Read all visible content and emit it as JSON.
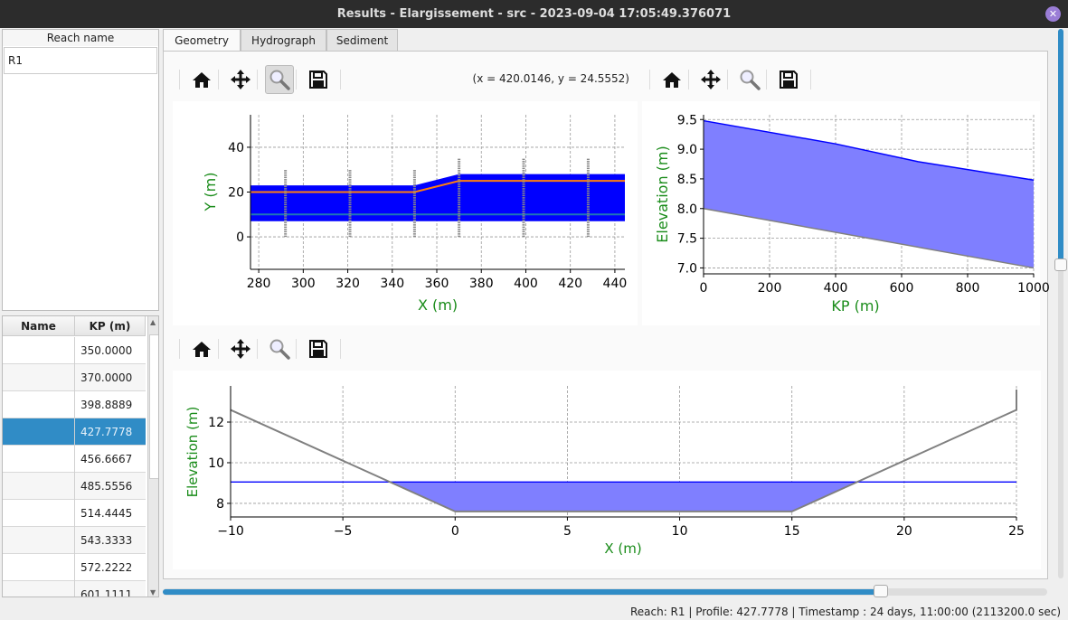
{
  "window": {
    "title": "Results - Elargissement - src - 2023-09-04 17:05:49.376071",
    "close_icon": "close-icon"
  },
  "reach_list": {
    "header": "Reach name",
    "items": [
      "R1"
    ]
  },
  "profile_table": {
    "headers": [
      "Name",
      "KP (m)"
    ],
    "rows": [
      {
        "name": "",
        "kp": "350.0000"
      },
      {
        "name": "",
        "kp": "370.0000"
      },
      {
        "name": "",
        "kp": "398.8889"
      },
      {
        "name": "",
        "kp": "427.7778",
        "selected": true
      },
      {
        "name": "",
        "kp": "456.6667"
      },
      {
        "name": "",
        "kp": "485.5556"
      },
      {
        "name": "",
        "kp": "514.4445"
      },
      {
        "name": "",
        "kp": "543.3333"
      },
      {
        "name": "",
        "kp": "572.2222"
      },
      {
        "name": "",
        "kp": "601.1111"
      }
    ]
  },
  "tabs": [
    {
      "label": "Geometry",
      "active": true
    },
    {
      "label": "Hydrograph"
    },
    {
      "label": "Sediment"
    }
  ],
  "toolbar": {
    "icons": [
      "home-icon",
      "pan-icon",
      "zoom-icon",
      "save-icon"
    ],
    "coords": "(x = 420.0146,   y = 24.5552)"
  },
  "colors": {
    "accent": "#308cc6",
    "water": "#0000ff",
    "water_fill": "#7f7fff",
    "bed": "#808080",
    "axis_label": "#1a8c1a",
    "orange": "#ff7f0e",
    "teal": "#1f77b4"
  },
  "chart_data": [
    {
      "type": "area",
      "name_key": "plan",
      "xlabel": "X (m)",
      "ylabel": "Y (m)",
      "xlim": [
        276.3,
        444.5
      ],
      "ylim": [
        -14.5,
        54.5
      ],
      "xticks": [
        280,
        300,
        320,
        340,
        360,
        380,
        400,
        420,
        440
      ],
      "yticks": [
        0,
        20,
        40
      ],
      "grid": true,
      "band": {
        "x": [
          276.3,
          350,
          370,
          444.5
        ],
        "y_low": [
          7,
          7,
          7,
          7
        ],
        "y_high": [
          23,
          23,
          28,
          28
        ]
      },
      "axis_line": {
        "x": [
          276.3,
          350,
          370,
          444.5
        ],
        "y": [
          20,
          20,
          25,
          25
        ]
      },
      "center_line": {
        "x": [
          276.3,
          444.5
        ],
        "y": [
          10,
          10
        ]
      },
      "profiles": [
        {
          "x": 292,
          "y": [
            0,
            30
          ]
        },
        {
          "x": 321,
          "y": [
            0,
            30
          ]
        },
        {
          "x": 350,
          "y": [
            0,
            30
          ]
        },
        {
          "x": 370,
          "y": [
            0,
            35
          ]
        },
        {
          "x": 399,
          "y": [
            0,
            35
          ]
        },
        {
          "x": 428,
          "y": [
            0,
            35
          ]
        }
      ]
    },
    {
      "type": "area",
      "name_key": "long",
      "xlabel": "KP (m)",
      "ylabel": "Elevation (m)",
      "xlim": [
        0,
        1000
      ],
      "ylim": [
        6.9,
        9.58
      ],
      "xticks": [
        0,
        200,
        400,
        600,
        800,
        1000
      ],
      "yticks": [
        7.0,
        7.5,
        8.0,
        8.5,
        9.0,
        9.5
      ],
      "grid": true,
      "water": {
        "x": [
          0,
          400,
          650,
          1000
        ],
        "y": [
          9.48,
          9.09,
          8.79,
          8.48
        ]
      },
      "bed": {
        "x": [
          0,
          1000
        ],
        "y": [
          8.0,
          7.0
        ]
      }
    },
    {
      "type": "area",
      "name_key": "cross",
      "xlabel": "X (m)",
      "ylabel": "Elevation (m)",
      "xlim": [
        -10,
        25
      ],
      "ylim": [
        7.33,
        13.78
      ],
      "xticks": [
        -10,
        -5,
        0,
        5,
        10,
        15,
        20,
        25
      ],
      "yticks": [
        8,
        10,
        12
      ],
      "grid": true,
      "bed": {
        "x": [
          -10,
          0,
          15,
          25,
          25
        ],
        "y": [
          12.6,
          7.6,
          7.6,
          12.6,
          13.6
        ]
      },
      "water_level": 9.05
    }
  ],
  "status": "Reach: R1 | Profile: 427.7778 | Timestamp : 24 days, 11:00:00 (2113200.0 sec)"
}
